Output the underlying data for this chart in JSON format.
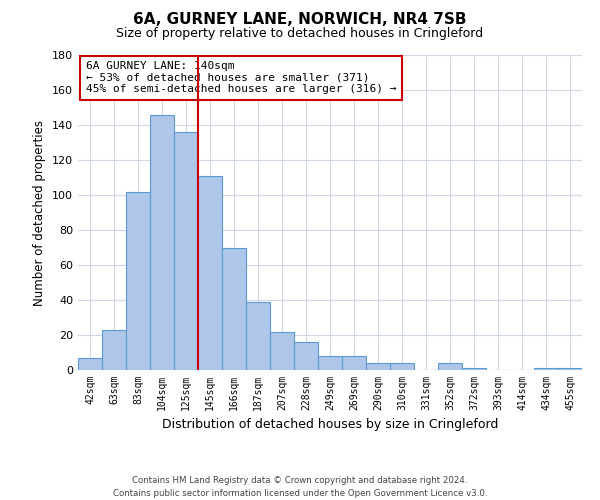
{
  "title": "6A, GURNEY LANE, NORWICH, NR4 7SB",
  "subtitle": "Size of property relative to detached houses in Cringleford",
  "xlabel": "Distribution of detached houses by size in Cringleford",
  "ylabel": "Number of detached properties",
  "bins": [
    "42sqm",
    "63sqm",
    "83sqm",
    "104sqm",
    "125sqm",
    "145sqm",
    "166sqm",
    "187sqm",
    "207sqm",
    "228sqm",
    "249sqm",
    "269sqm",
    "290sqm",
    "310sqm",
    "331sqm",
    "352sqm",
    "372sqm",
    "393sqm",
    "414sqm",
    "434sqm",
    "455sqm"
  ],
  "values": [
    7,
    23,
    102,
    146,
    136,
    111,
    70,
    39,
    22,
    16,
    8,
    8,
    4,
    4,
    0,
    4,
    1,
    0,
    0,
    1,
    1
  ],
  "bar_color": "#aec6e8",
  "bar_edge_color": "#5b9bd5",
  "vline_color": "#cc0000",
  "annotation_text": "6A GURNEY LANE: 140sqm\n← 53% of detached houses are smaller (371)\n45% of semi-detached houses are larger (316) →",
  "annotation_box_color": "#ffffff",
  "annotation_box_edgecolor": "#cc0000",
  "ylim": [
    0,
    180
  ],
  "yticks": [
    0,
    20,
    40,
    60,
    80,
    100,
    120,
    140,
    160,
    180
  ],
  "footer": "Contains HM Land Registry data © Crown copyright and database right 2024.\nContains public sector information licensed under the Open Government Licence v3.0.",
  "background_color": "#ffffff",
  "grid_color": "#d0d8e8"
}
